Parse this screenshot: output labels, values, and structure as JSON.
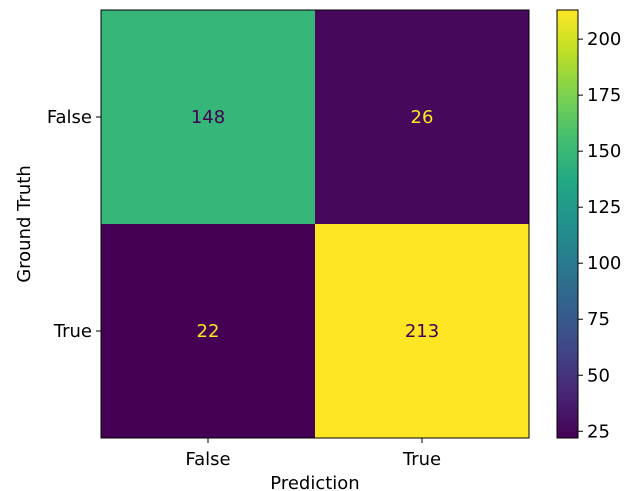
{
  "chart_data": {
    "type": "heatmap",
    "title": "",
    "xlabel": "Prediction",
    "ylabel": "Ground Truth",
    "x_categories": [
      "False",
      "True"
    ],
    "y_categories": [
      "False",
      "True"
    ],
    "matrix": [
      [
        148,
        26
      ],
      [
        22,
        213
      ]
    ],
    "colormap": "viridis",
    "value_range": [
      22,
      213
    ],
    "colorbar": {
      "ticks": [
        25,
        50,
        75,
        100,
        125,
        150,
        175,
        200
      ],
      "tick_labels": [
        "25",
        "50",
        "75",
        "100",
        "125",
        "150",
        "175",
        "200"
      ]
    },
    "grid": false,
    "colors": {
      "low_text": "#fde725",
      "high_text": "#440154"
    }
  }
}
